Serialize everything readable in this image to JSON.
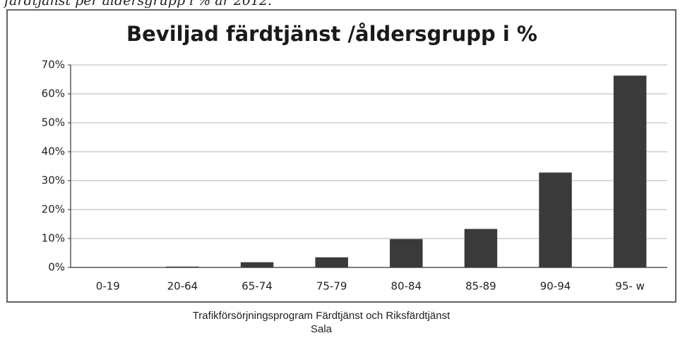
{
  "caption": "färdtjänst per åldersgrupp i % år 2012.",
  "footer": [
    "Trafikförsörjningsprogram Färdtjänst och Riksfärdtjänst",
    "Sala"
  ],
  "chart_data": {
    "type": "bar",
    "title": "Beviljad färdtjänst /åldersgrupp i %",
    "categories": [
      "0-19",
      "20-64",
      "65-74",
      "75-79",
      "80-84",
      "85-89",
      "90-94",
      "95- w"
    ],
    "values": [
      0,
      0.3,
      1.8,
      3.5,
      9.8,
      13.3,
      32.8,
      66.3
    ],
    "color": "#3a3a3a",
    "ylim": [
      0,
      70
    ],
    "yticks": [
      {
        "value": 0,
        "label": "0%"
      },
      {
        "value": 10,
        "label": "10%"
      },
      {
        "value": 20,
        "label": "20%"
      },
      {
        "value": 30,
        "label": "30%"
      },
      {
        "value": 40,
        "label": "40%"
      },
      {
        "value": 50,
        "label": "50%"
      },
      {
        "value": 60,
        "label": "60%"
      },
      {
        "value": 70,
        "label": "70%"
      }
    ],
    "grid": true
  }
}
